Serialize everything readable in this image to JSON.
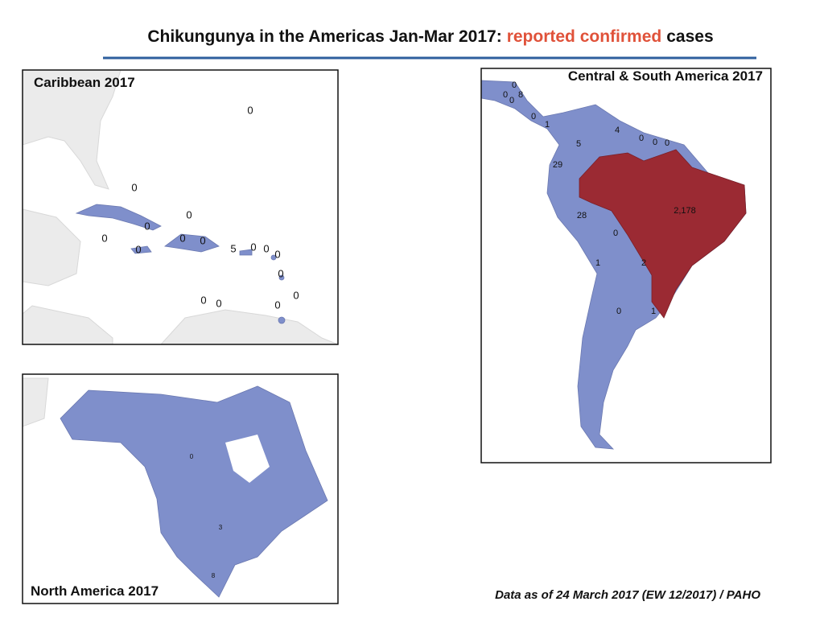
{
  "header": {
    "title_start": "Chikungunya in the Americas Jan-Mar 2017:",
    "title_highlight": "reported confirmed",
    "title_end": "cases"
  },
  "panels": [
    {
      "title": "Caribbean 2017",
      "labels": [
        0,
        0,
        0,
        0,
        0,
        0,
        0,
        0,
        5,
        0,
        0,
        0,
        0,
        0,
        0,
        0,
        0
      ]
    },
    {
      "title": "Central & South America 2017",
      "labels": [
        0,
        0,
        8,
        0,
        0,
        1,
        4,
        0,
        0,
        0,
        5,
        29,
        28,
        {
          "value": 2178,
          "label": "2,178"
        },
        0,
        1,
        2,
        0,
        1
      ]
    },
    {
      "title": "North America 2017",
      "labels": [
        0,
        3,
        8
      ]
    }
  ],
  "footer": "Data as of 24 March 2017 (EW 12/2017) / PAHO"
}
